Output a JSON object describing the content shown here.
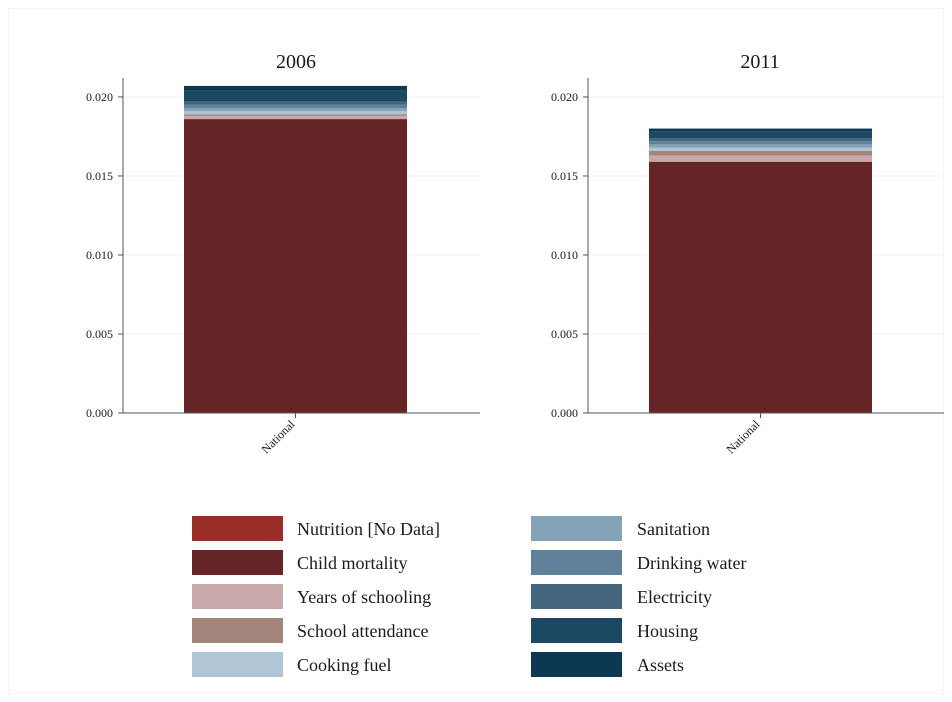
{
  "chart_data": {
    "type": "bar",
    "stacked": true,
    "categories": [
      "National"
    ],
    "panels": [
      {
        "title": "2006",
        "ylim": [
          0,
          0.0212
        ],
        "yticks": [
          "0.000",
          "0.005",
          "0.010",
          "0.015",
          "0.020"
        ],
        "series": [
          {
            "name": "Nutrition [No Data]",
            "values": [
              0.0
            ]
          },
          {
            "name": "Child mortality",
            "values": [
              0.0186
            ]
          },
          {
            "name": "Years of schooling",
            "values": [
              0.0002
            ]
          },
          {
            "name": "School attendance",
            "values": [
              0.0001
            ]
          },
          {
            "name": "Cooking fuel",
            "values": [
              0.0002
            ]
          },
          {
            "name": "Sanitation",
            "values": [
              0.0002
            ]
          },
          {
            "name": "Drinking water",
            "values": [
              0.0002
            ]
          },
          {
            "name": "Electricity",
            "values": [
              0.0002
            ]
          },
          {
            "name": "Housing",
            "values": [
              0.0007
            ]
          },
          {
            "name": "Assets",
            "values": [
              0.0003
            ]
          }
        ]
      },
      {
        "title": "2011",
        "ylim": [
          0,
          0.0212
        ],
        "yticks": [
          "0.000",
          "0.005",
          "0.010",
          "0.015",
          "0.020"
        ],
        "series": [
          {
            "name": "Nutrition [No Data]",
            "values": [
              0.0
            ]
          },
          {
            "name": "Child mortality",
            "values": [
              0.0159
            ]
          },
          {
            "name": "Years of schooling",
            "values": [
              0.0004
            ]
          },
          {
            "name": "School attendance",
            "values": [
              0.0003
            ]
          },
          {
            "name": "Cooking fuel",
            "values": [
              0.0002
            ]
          },
          {
            "name": "Sanitation",
            "values": [
              0.0002
            ]
          },
          {
            "name": "Drinking water",
            "values": [
              0.0002
            ]
          },
          {
            "name": "Electricity",
            "values": [
              0.0002
            ]
          },
          {
            "name": "Housing",
            "values": [
              0.0004
            ]
          },
          {
            "name": "Assets",
            "values": [
              0.0002
            ]
          }
        ]
      }
    ],
    "legend": {
      "placement": "bottom",
      "entries": [
        {
          "name": "Nutrition [No Data]",
          "color": "#9b2d28"
        },
        {
          "name": "Child mortality",
          "color": "#652426"
        },
        {
          "name": "Years of schooling",
          "color": "#c9a8ab"
        },
        {
          "name": "School attendance",
          "color": "#a4857c"
        },
        {
          "name": "Cooking fuel",
          "color": "#b0c5d5"
        },
        {
          "name": "Sanitation",
          "color": "#84a3b8"
        },
        {
          "name": "Drinking water",
          "color": "#5f8199"
        },
        {
          "name": "Electricity",
          "color": "#44677f"
        },
        {
          "name": "Housing",
          "color": "#1b4963"
        },
        {
          "name": "Assets",
          "color": "#0d3854"
        }
      ]
    },
    "grid": true
  }
}
